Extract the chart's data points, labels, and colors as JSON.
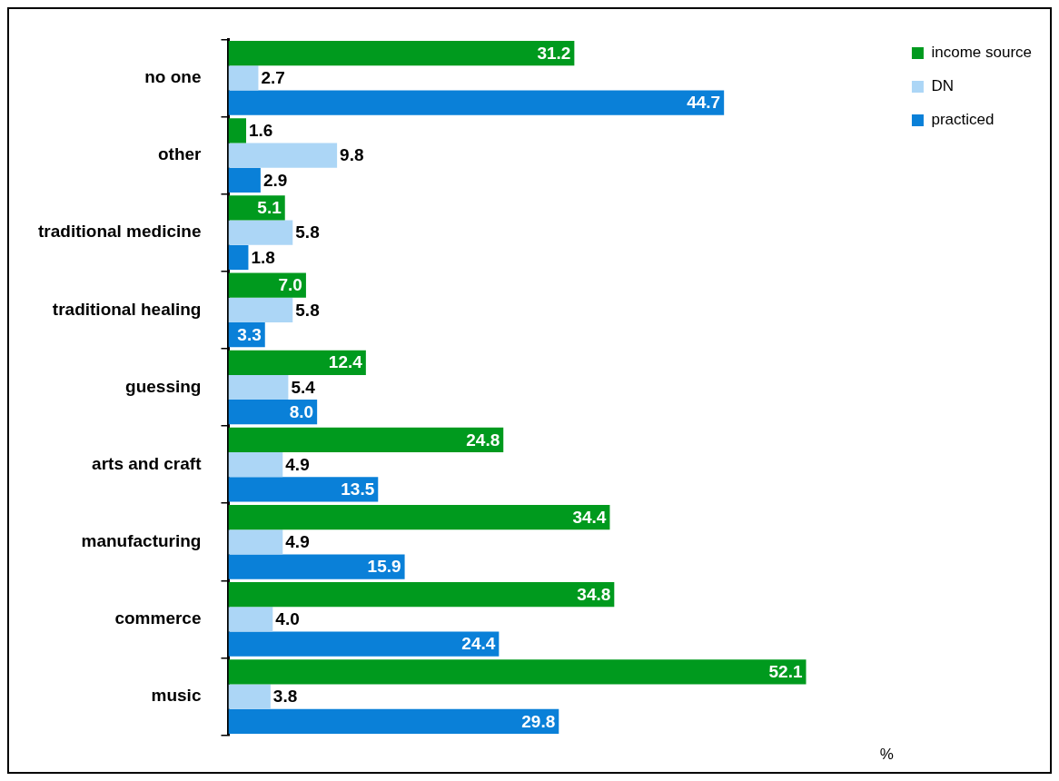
{
  "chart_data": {
    "type": "bar",
    "orientation": "horizontal",
    "xlabel": "%",
    "categories": [
      "no one",
      "other",
      "traditional medicine",
      "traditional healing",
      "guessing",
      "arts and craft",
      "manufacturing",
      "commerce",
      "music"
    ],
    "series": [
      {
        "name": "income source",
        "color": "#009a1e",
        "values": [
          31.2,
          1.6,
          5.1,
          7.0,
          12.4,
          24.8,
          34.4,
          34.8,
          52.1
        ],
        "value_labels": [
          "31.2",
          "1.6",
          "5.1",
          "7.0",
          "12.4",
          "24.8",
          "34.4",
          "34.8",
          "52.1"
        ]
      },
      {
        "name": "DN",
        "color": "#acd6f6",
        "values": [
          2.7,
          9.8,
          5.8,
          5.8,
          5.4,
          4.9,
          4.9,
          4.0,
          3.8
        ],
        "value_labels": [
          "2.7",
          "9.8",
          "5.8",
          "5.8",
          "5.4",
          "4.9",
          "4.9",
          "4.0",
          "3.8"
        ]
      },
      {
        "name": "practiced",
        "color": "#0a80d8",
        "values": [
          44.7,
          2.9,
          1.8,
          3.3,
          8.0,
          13.5,
          15.9,
          24.4,
          29.8
        ],
        "value_labels": [
          "44.7",
          "2.9",
          "1.8",
          "3.3",
          "8.0",
          "13.5",
          "15.9",
          "24.4",
          "29.8"
        ]
      }
    ],
    "legend": "right",
    "grid": false
  }
}
